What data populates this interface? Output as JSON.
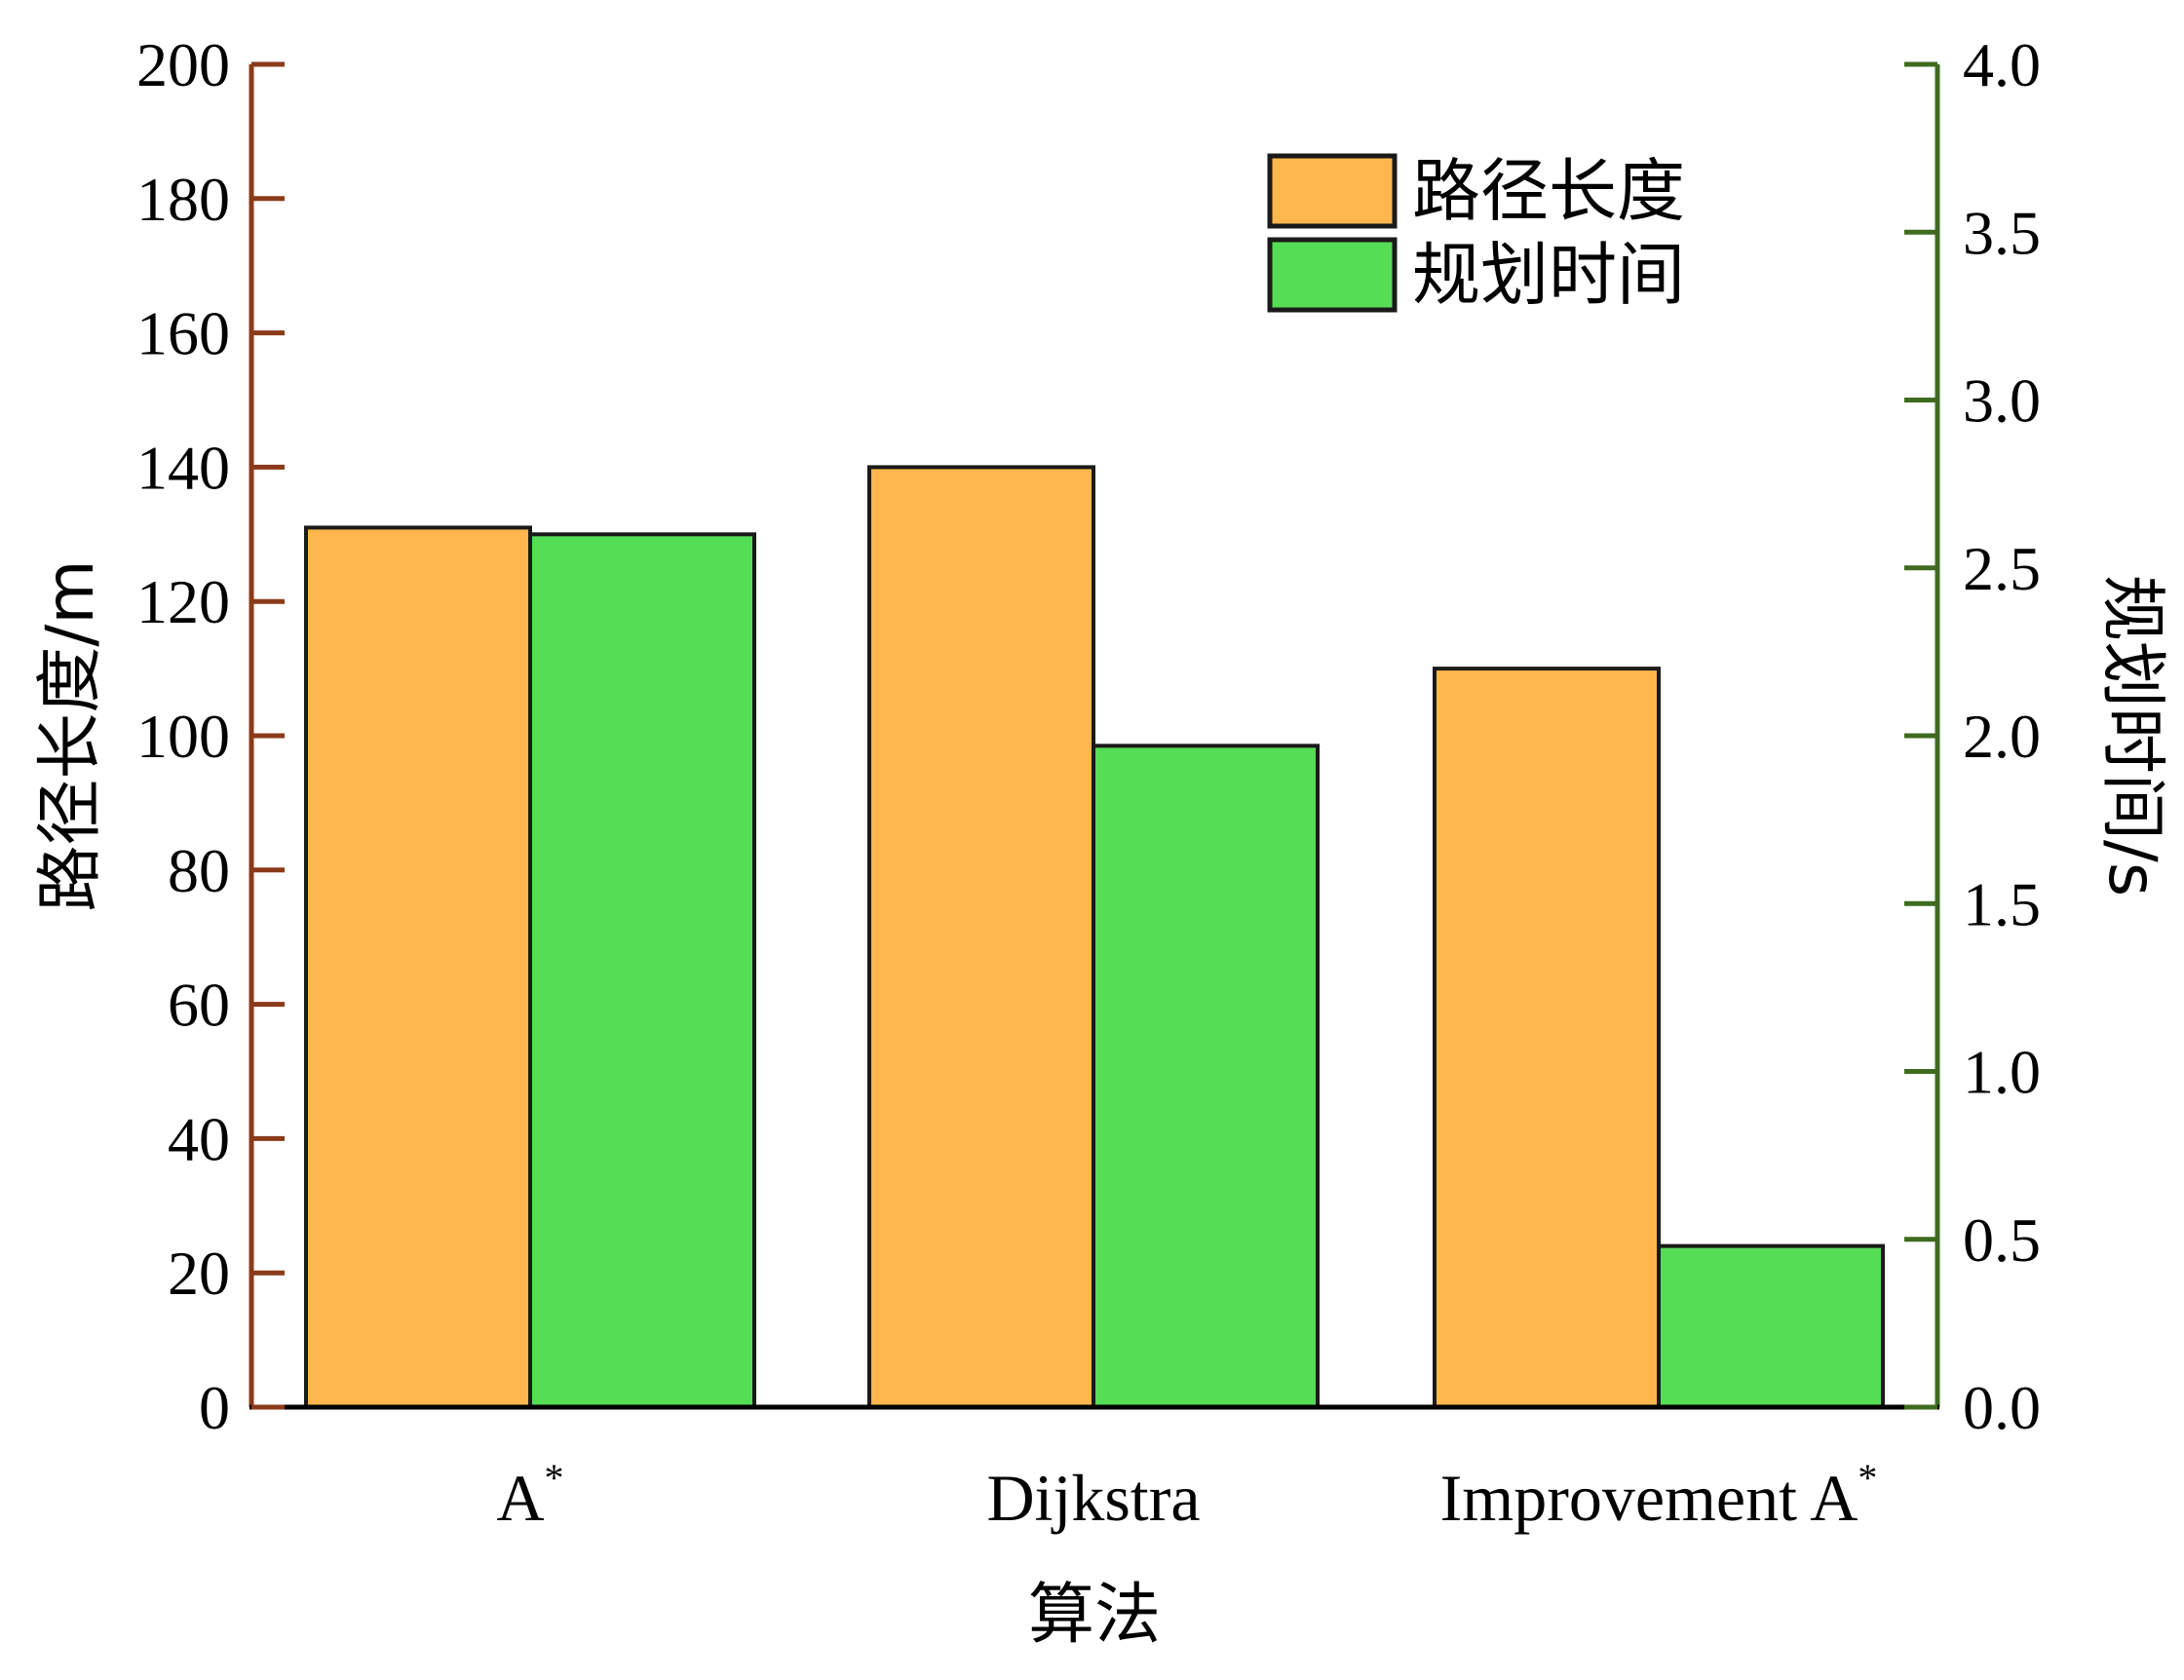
{
  "chart_data": {
    "type": "bar",
    "categories": [
      "A",
      "Dijkstra",
      "Improvement A"
    ],
    "category_superscripts": [
      "*",
      "",
      "*"
    ],
    "series": [
      {
        "name": "路径长度",
        "axis": "left",
        "values": [
          131,
          140,
          110
        ],
        "color": "#FFB74D"
      },
      {
        "name": "规划时间",
        "axis": "right",
        "values": [
          2.6,
          1.97,
          0.48
        ],
        "color": "#55DD55"
      }
    ],
    "xlabel": "算法",
    "ylabel_left": "路径长度/m",
    "ylabel_right": "规划时间/s",
    "ylim_left": [
      0,
      200
    ],
    "ylim_right": [
      0,
      4.0
    ],
    "yticks_left": [
      "0",
      "20",
      "40",
      "60",
      "80",
      "100",
      "120",
      "140",
      "160",
      "180",
      "200"
    ],
    "yticks_right": [
      "0.0",
      "0.5",
      "1.0",
      "1.5",
      "2.0",
      "2.5",
      "3.0",
      "3.5",
      "4.0"
    ],
    "left_axis_color": "#8B3A1A",
    "right_axis_color": "#3F6B1F",
    "legend_position": "top-right",
    "grid": false
  }
}
